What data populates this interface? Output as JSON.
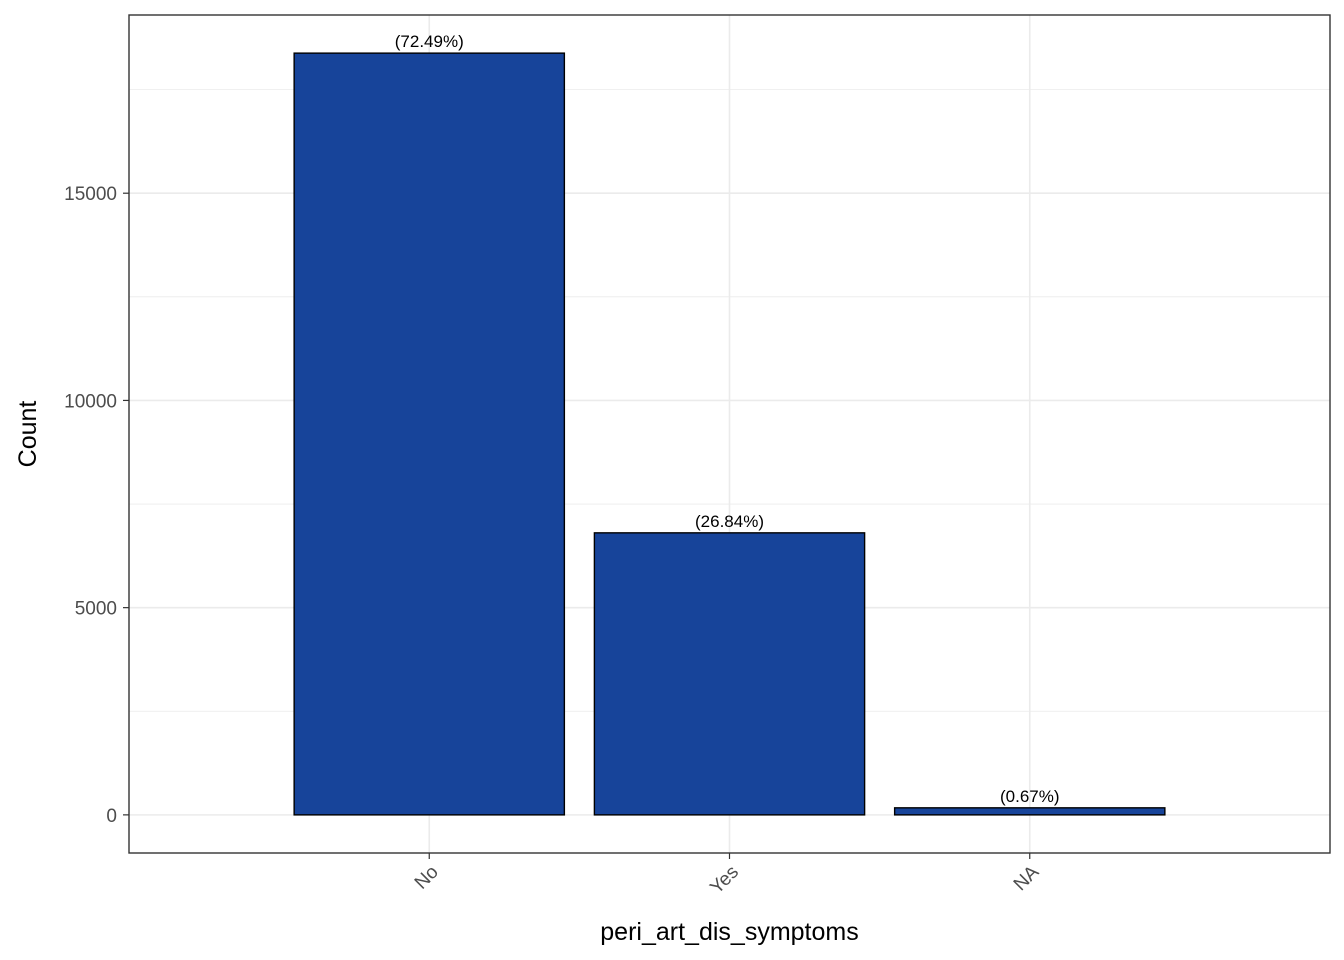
{
  "chart_data": {
    "type": "bar",
    "title": "",
    "xlabel": "peri_art_dis_symptoms",
    "ylabel": "Count",
    "categories": [
      "No",
      "Yes",
      "NA"
    ],
    "values": [
      18380,
      6805,
      170
    ],
    "labels": [
      "(72.49%)",
      "(26.84%)",
      "(0.67%)"
    ],
    "yticks": [
      0,
      5000,
      10000,
      15000
    ],
    "ytick_labels": [
      "0",
      "5000",
      "10000",
      "15000"
    ],
    "ylim": [
      -920,
      19300
    ],
    "grid": true,
    "legend": "none",
    "bar_color": "#17449a",
    "bar_border_color": "#000000"
  }
}
